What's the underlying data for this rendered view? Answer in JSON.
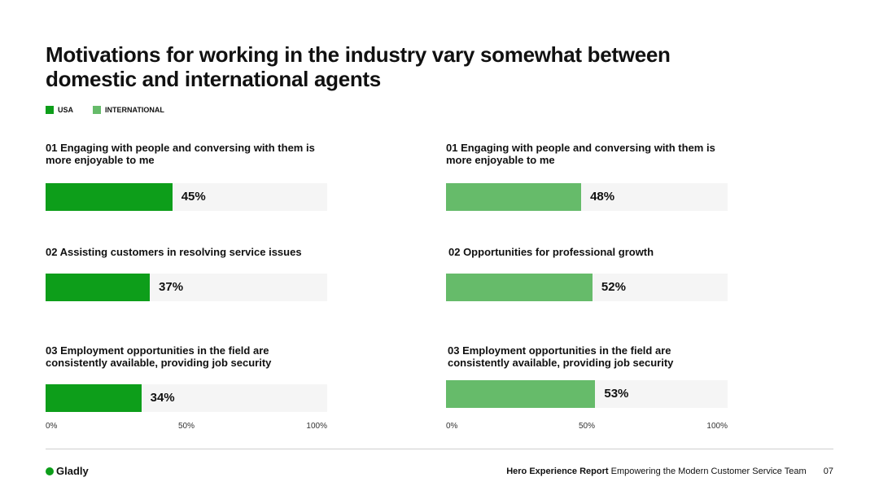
{
  "title": "Motivations for working in the industry vary somewhat between domestic and international agents",
  "legend": [
    {
      "label": "USA",
      "color": "#0d9e1a"
    },
    {
      "label": "INTERNATIONAL",
      "color": "#66bb6a"
    }
  ],
  "chart_data": [
    {
      "type": "bar",
      "series_name": "USA",
      "color": "#0d9e1a",
      "categories": [
        "01 Engaging with people and conversing with them is more enjoyable to me",
        "02 Assisting customers in resolving service issues",
        "03 Employment opportunities in the field are consistently available, providing job security"
      ],
      "values": [
        45,
        37,
        34
      ],
      "value_labels": [
        "45%",
        "37%",
        "34%"
      ],
      "xlim": [
        0,
        100
      ],
      "ticks": [
        "0%",
        "50%",
        "100%"
      ]
    },
    {
      "type": "bar",
      "series_name": "INTERNATIONAL",
      "color": "#66bb6a",
      "categories": [
        "01 Engaging with people and conversing with them is more enjoyable to me",
        "02 Opportunities for professional growth",
        "03 Employment opportunities in the field are consistently available, providing job security"
      ],
      "values": [
        48,
        52,
        53
      ],
      "value_labels": [
        "48%",
        "52%",
        "53%"
      ],
      "xlim": [
        0,
        100
      ],
      "ticks": [
        "0%",
        "50%",
        "100%"
      ]
    }
  ],
  "footer": {
    "logo": "Gladly",
    "report_bold": "Hero Experience Report",
    "report_sub": "Empowering the Modern Customer Service Team",
    "page": "07"
  }
}
